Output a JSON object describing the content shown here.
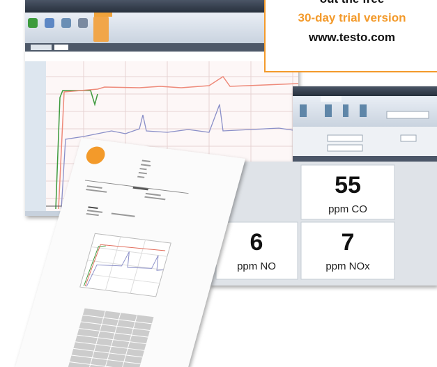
{
  "promo": {
    "line1": "out the free",
    "line2": "30-day trial version",
    "url": "www.testo.com"
  },
  "readings": [
    {
      "value": 55,
      "unit": "ppm CO"
    },
    {
      "value": 6,
      "unit": "ppm NO"
    },
    {
      "value": 7,
      "unit": "ppm NOx"
    }
  ]
}
